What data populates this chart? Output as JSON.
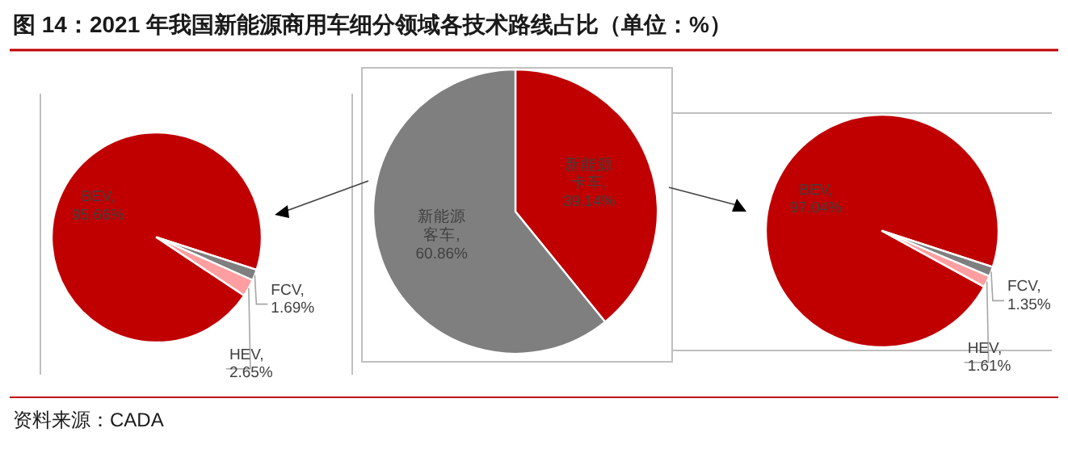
{
  "chart_data": [
    {
      "type": "pie",
      "title": "图 14：2021 年我国新能源商用车细分领域各技术路线占比（单位：%）",
      "annotations": [
        "资料来源：CADA"
      ],
      "categories": [
        "BEV",
        "FCV",
        "HEV"
      ],
      "values": [
        95.66,
        1.69,
        2.65
      ],
      "data_labels": true,
      "value_labels": [
        ", 95.66%",
        ", 1.69%",
        ", 2.65%"
      ],
      "colors": [
        "#c00000",
        "#7f7f7f",
        "#ff9ea0"
      ]
    },
    {
      "type": "pie",
      "categories": [
        "新能源卡车",
        "新能源客车"
      ],
      "values": [
        39.14,
        60.86
      ],
      "data_labels": true,
      "value_labels": [
        ", 39.14%",
        ", 60.86%"
      ],
      "colors": [
        "#c00000",
        "#7f7f7f"
      ]
    },
    {
      "type": "pie",
      "categories": [
        "BEV",
        "FCV",
        "HEV"
      ],
      "values": [
        97.04,
        1.35,
        1.61
      ],
      "data_labels": true,
      "value_labels": [
        ", 97.04%",
        ", 1.35%",
        ", 1.61%"
      ],
      "colors": [
        "#c00000",
        "#7f7f7f",
        "#ff9ea0"
      ]
    }
  ]
}
